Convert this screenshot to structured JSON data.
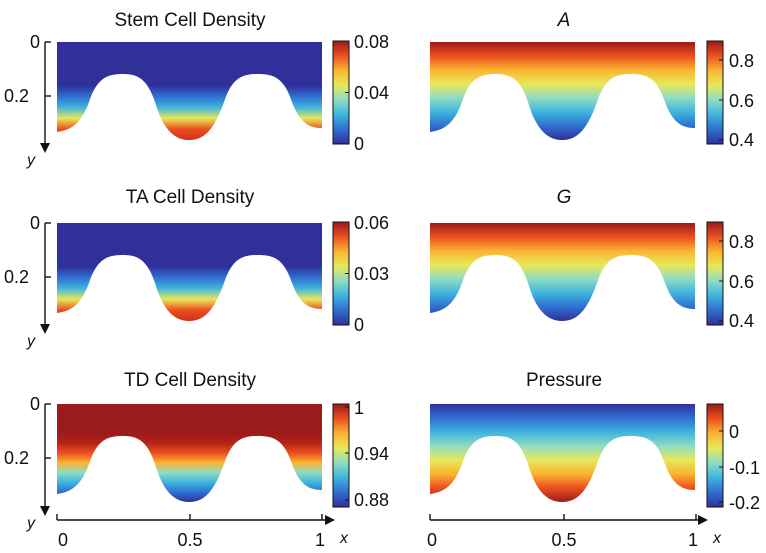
{
  "figure": {
    "colormap": [
      "#30309a",
      "#2f6fd0",
      "#3fb4dd",
      "#8fdcc4",
      "#e8e85a",
      "#f9b531",
      "#ec4f1f",
      "#9b1b1b"
    ],
    "x_axis": {
      "label": "x",
      "ticks": [
        "0",
        "0.5",
        "1"
      ]
    },
    "y_axis": {
      "label": "y",
      "ticks": [
        "0",
        "0.2"
      ]
    }
  },
  "chart_data": [
    {
      "type": "heatmap",
      "title": "Stem Cell Density",
      "title_italic": false,
      "colorbar_ticks": [
        "0.08",
        "0.04",
        "0"
      ],
      "gradient": "wall",
      "vrange": [
        0,
        0.08
      ]
    },
    {
      "type": "heatmap",
      "title": "A",
      "title_italic": true,
      "colorbar_ticks": [
        "0.8",
        "0.6",
        "0.4"
      ],
      "gradient": "depth",
      "vrange": [
        0.4,
        0.9
      ]
    },
    {
      "type": "heatmap",
      "title": "TA Cell Density",
      "title_italic": false,
      "colorbar_ticks": [
        "0.06",
        "0.03",
        "0"
      ],
      "gradient": "wall",
      "vrange": [
        0,
        0.06
      ]
    },
    {
      "type": "heatmap",
      "title": "G",
      "title_italic": true,
      "colorbar_ticks": [
        "0.8",
        "0.6",
        "0.4"
      ],
      "gradient": "depth",
      "vrange": [
        0.4,
        0.9
      ]
    },
    {
      "type": "heatmap",
      "title": "TD Cell Density",
      "title_italic": false,
      "colorbar_ticks": [
        "1",
        "0.94",
        "0.88"
      ],
      "gradient": "wall-inverse",
      "vrange": [
        0.88,
        1
      ]
    },
    {
      "type": "heatmap",
      "title": "Pressure",
      "title_italic": false,
      "colorbar_ticks": [
        "0",
        "-0.1",
        "-0.2"
      ],
      "gradient": "depth-inverse",
      "vrange": [
        -0.2,
        0.05
      ]
    }
  ]
}
